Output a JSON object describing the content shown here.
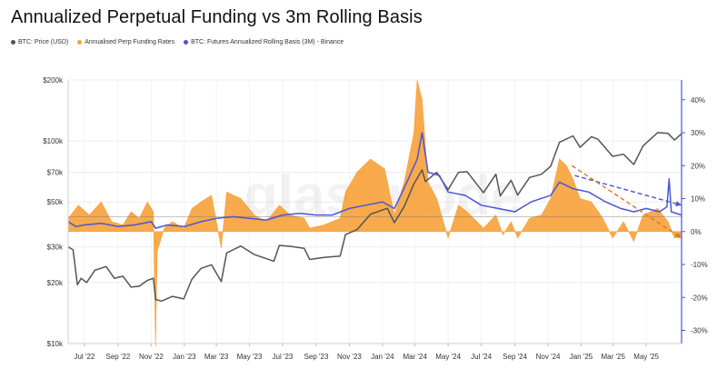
{
  "title": "Annualized Perpetual Funding vs 3m Rolling Basis",
  "legend": [
    {
      "label": "BTC: Price (USD)",
      "color": "#555555"
    },
    {
      "label": "Annualised Perp Funding Rates",
      "color": "#f7a13a"
    },
    {
      "label": "BTC: Futures Annualized Rolling Basis (3M) - Binance",
      "color": "#4a55d6"
    }
  ],
  "watermark": "glassnode",
  "colors": {
    "price": "#555555",
    "funding": "#f7a13a",
    "basis": "#4a55d6",
    "right_axis": "#4a55d6"
  },
  "chart_data": {
    "type": "line",
    "title": "Annualized Perpetual Funding vs 3m Rolling Basis",
    "x_start": "2022-06-01",
    "x_end": "2025-07-05",
    "x_ticks": [
      {
        "label": "Jul '22",
        "date": "2022-07-01"
      },
      {
        "label": "Sep '22",
        "date": "2022-09-01"
      },
      {
        "label": "Nov '22",
        "date": "2022-11-01"
      },
      {
        "label": "Jan '23",
        "date": "2023-01-01"
      },
      {
        "label": "Mar '23",
        "date": "2023-03-01"
      },
      {
        "label": "May '23",
        "date": "2023-05-01"
      },
      {
        "label": "Jul '23",
        "date": "2023-07-01"
      },
      {
        "label": "Sep '23",
        "date": "2023-09-01"
      },
      {
        "label": "Nov '23",
        "date": "2023-11-01"
      },
      {
        "label": "Jan '24",
        "date": "2024-01-01"
      },
      {
        "label": "Mar '24",
        "date": "2024-03-01"
      },
      {
        "label": "May '24",
        "date": "2024-05-01"
      },
      {
        "label": "Jul '24",
        "date": "2024-07-01"
      },
      {
        "label": "Sep '24",
        "date": "2024-09-01"
      },
      {
        "label": "Nov '24",
        "date": "2024-11-01"
      },
      {
        "label": "Jan '25",
        "date": "2025-01-01"
      },
      {
        "label": "Mar '25",
        "date": "2025-03-01"
      },
      {
        "label": "May '25",
        "date": "2025-05-01"
      }
    ],
    "left_axis": {
      "scale": "log",
      "range": [
        10000,
        200000
      ],
      "ticks": [
        {
          "label": "$200k",
          "value": 200000
        },
        {
          "label": "$100k",
          "value": 100000
        },
        {
          "label": "$70k",
          "value": 70000
        },
        {
          "label": "$50k",
          "value": 50000
        },
        {
          "label": "$30k",
          "value": 30000
        },
        {
          "label": "$20k",
          "value": 20000
        },
        {
          "label": "$10k",
          "value": 10000
        }
      ]
    },
    "right_axis": {
      "scale": "linear",
      "range": [
        -34,
        46
      ],
      "ticks": [
        {
          "label": "40%",
          "value": 40
        },
        {
          "label": "30%",
          "value": 30
        },
        {
          "label": "20%",
          "value": 20
        },
        {
          "label": "10%",
          "value": 10
        },
        {
          "label": "0%",
          "value": 0
        },
        {
          "label": "-10%",
          "value": -10
        },
        {
          "label": "-20%",
          "value": -20
        },
        {
          "label": "-30%",
          "value": -30
        }
      ]
    },
    "series": [
      {
        "name": "BTC: Price (USD)",
        "axis": "left",
        "points": [
          [
            "2022-06-01",
            30000
          ],
          [
            "2022-06-10",
            29000
          ],
          [
            "2022-06-18",
            19500
          ],
          [
            "2022-06-25",
            21000
          ],
          [
            "2022-07-05",
            20000
          ],
          [
            "2022-07-20",
            23000
          ],
          [
            "2022-08-10",
            24000
          ],
          [
            "2022-08-25",
            21000
          ],
          [
            "2022-09-10",
            21500
          ],
          [
            "2022-09-25",
            19000
          ],
          [
            "2022-10-10",
            19200
          ],
          [
            "2022-10-25",
            20500
          ],
          [
            "2022-11-05",
            21000
          ],
          [
            "2022-11-09",
            16500
          ],
          [
            "2022-11-20",
            16200
          ],
          [
            "2022-12-10",
            17100
          ],
          [
            "2022-12-31",
            16600
          ],
          [
            "2023-01-15",
            20800
          ],
          [
            "2023-02-01",
            23500
          ],
          [
            "2023-02-20",
            24500
          ],
          [
            "2023-03-10",
            20200
          ],
          [
            "2023-03-20",
            28000
          ],
          [
            "2023-04-15",
            30300
          ],
          [
            "2023-05-10",
            27500
          ],
          [
            "2023-06-15",
            25500
          ],
          [
            "2023-06-25",
            30500
          ],
          [
            "2023-07-15",
            30200
          ],
          [
            "2023-08-10",
            29500
          ],
          [
            "2023-08-20",
            26000
          ],
          [
            "2023-09-15",
            26600
          ],
          [
            "2023-10-15",
            27000
          ],
          [
            "2023-10-25",
            34500
          ],
          [
            "2023-11-15",
            36500
          ],
          [
            "2023-12-10",
            43500
          ],
          [
            "2024-01-10",
            46500
          ],
          [
            "2024-01-23",
            39500
          ],
          [
            "2024-02-10",
            47500
          ],
          [
            "2024-02-28",
            61500
          ],
          [
            "2024-03-14",
            72000
          ],
          [
            "2024-03-20",
            63000
          ],
          [
            "2024-04-10",
            70000
          ],
          [
            "2024-05-01",
            57500
          ],
          [
            "2024-05-20",
            70000
          ],
          [
            "2024-06-05",
            70500
          ],
          [
            "2024-07-05",
            55500
          ],
          [
            "2024-07-28",
            68500
          ],
          [
            "2024-08-05",
            53500
          ],
          [
            "2024-08-25",
            64000
          ],
          [
            "2024-09-06",
            54000
          ],
          [
            "2024-09-28",
            66000
          ],
          [
            "2024-10-20",
            68500
          ],
          [
            "2024-11-06",
            75000
          ],
          [
            "2024-11-22",
            98500
          ],
          [
            "2024-12-17",
            106000
          ],
          [
            "2024-12-30",
            93000
          ],
          [
            "2025-01-20",
            105000
          ],
          [
            "2025-02-01",
            102000
          ],
          [
            "2025-02-28",
            84000
          ],
          [
            "2025-03-20",
            86000
          ],
          [
            "2025-04-08",
            76500
          ],
          [
            "2025-04-25",
            94500
          ],
          [
            "2025-05-22",
            110000
          ],
          [
            "2025-06-10",
            109000
          ],
          [
            "2025-06-22",
            101000
          ],
          [
            "2025-07-05",
            108500
          ]
        ]
      },
      {
        "name": "Annualised Perp Funding Rates",
        "axis": "right",
        "points": [
          [
            "2022-06-01",
            4
          ],
          [
            "2022-06-20",
            8
          ],
          [
            "2022-07-10",
            5
          ],
          [
            "2022-08-01",
            9
          ],
          [
            "2022-08-20",
            3
          ],
          [
            "2022-09-10",
            2
          ],
          [
            "2022-09-25",
            6
          ],
          [
            "2022-10-10",
            4
          ],
          [
            "2022-10-25",
            9
          ],
          [
            "2022-11-05",
            6
          ],
          [
            "2022-11-09",
            -35
          ],
          [
            "2022-11-12",
            -6
          ],
          [
            "2022-11-25",
            1
          ],
          [
            "2022-12-10",
            3
          ],
          [
            "2022-12-31",
            1
          ],
          [
            "2023-01-15",
            7
          ],
          [
            "2023-02-01",
            9
          ],
          [
            "2023-02-20",
            11
          ],
          [
            "2023-03-10",
            -5
          ],
          [
            "2023-03-20",
            12
          ],
          [
            "2023-04-15",
            10
          ],
          [
            "2023-05-10",
            5
          ],
          [
            "2023-06-01",
            3
          ],
          [
            "2023-06-25",
            8
          ],
          [
            "2023-07-15",
            5
          ],
          [
            "2023-08-10",
            4
          ],
          [
            "2023-08-20",
            1
          ],
          [
            "2023-09-15",
            2
          ],
          [
            "2023-10-15",
            4
          ],
          [
            "2023-10-25",
            12
          ],
          [
            "2023-11-15",
            18
          ],
          [
            "2023-12-10",
            22
          ],
          [
            "2024-01-05",
            19
          ],
          [
            "2024-01-23",
            5
          ],
          [
            "2024-02-10",
            15
          ],
          [
            "2024-02-28",
            30
          ],
          [
            "2024-03-05",
            46
          ],
          [
            "2024-03-14",
            40
          ],
          [
            "2024-03-25",
            15
          ],
          [
            "2024-04-10",
            10
          ],
          [
            "2024-05-01",
            -2
          ],
          [
            "2024-05-20",
            8
          ],
          [
            "2024-06-05",
            6
          ],
          [
            "2024-07-05",
            1
          ],
          [
            "2024-07-28",
            5
          ],
          [
            "2024-08-10",
            -1
          ],
          [
            "2024-08-25",
            3
          ],
          [
            "2024-09-06",
            -2
          ],
          [
            "2024-09-28",
            4
          ],
          [
            "2024-10-20",
            5
          ],
          [
            "2024-11-06",
            10
          ],
          [
            "2024-11-22",
            22
          ],
          [
            "2024-12-05",
            20
          ],
          [
            "2024-12-17",
            16
          ],
          [
            "2024-12-30",
            10
          ],
          [
            "2025-01-20",
            9
          ],
          [
            "2025-02-10",
            4
          ],
          [
            "2025-02-28",
            -2
          ],
          [
            "2025-03-20",
            3
          ],
          [
            "2025-04-08",
            -3
          ],
          [
            "2025-04-25",
            5
          ],
          [
            "2025-05-22",
            7
          ],
          [
            "2025-06-10",
            3
          ],
          [
            "2025-06-22",
            -2
          ],
          [
            "2025-07-05",
            -1
          ]
        ]
      },
      {
        "name": "BTC: Futures Annualized Rolling Basis (3M) - Binance",
        "axis": "right",
        "points": [
          [
            "2022-06-01",
            3
          ],
          [
            "2022-06-15",
            1.5
          ],
          [
            "2022-07-01",
            2
          ],
          [
            "2022-08-01",
            2.5
          ],
          [
            "2022-09-01",
            1.5
          ],
          [
            "2022-10-01",
            2
          ],
          [
            "2022-11-01",
            3
          ],
          [
            "2022-11-09",
            1
          ],
          [
            "2022-12-01",
            2
          ],
          [
            "2023-01-01",
            1.5
          ],
          [
            "2023-02-01",
            3
          ],
          [
            "2023-03-01",
            4
          ],
          [
            "2023-04-01",
            4.5
          ],
          [
            "2023-05-01",
            4
          ],
          [
            "2023-06-01",
            3.5
          ],
          [
            "2023-07-01",
            5
          ],
          [
            "2023-08-01",
            5.5
          ],
          [
            "2023-09-01",
            5
          ],
          [
            "2023-10-01",
            5
          ],
          [
            "2023-11-01",
            7
          ],
          [
            "2023-12-01",
            8
          ],
          [
            "2024-01-01",
            9
          ],
          [
            "2024-01-23",
            7
          ],
          [
            "2024-02-15",
            15
          ],
          [
            "2024-03-05",
            22
          ],
          [
            "2024-03-14",
            30
          ],
          [
            "2024-03-25",
            18
          ],
          [
            "2024-04-15",
            17
          ],
          [
            "2024-05-01",
            12
          ],
          [
            "2024-06-01",
            11
          ],
          [
            "2024-07-01",
            8
          ],
          [
            "2024-08-01",
            7
          ],
          [
            "2024-09-01",
            6
          ],
          [
            "2024-10-01",
            9
          ],
          [
            "2024-11-06",
            11
          ],
          [
            "2024-11-22",
            15
          ],
          [
            "2024-12-17",
            13
          ],
          [
            "2025-01-15",
            12
          ],
          [
            "2025-02-15",
            9
          ],
          [
            "2025-03-15",
            7
          ],
          [
            "2025-04-08",
            6
          ],
          [
            "2025-05-01",
            7
          ],
          [
            "2025-05-25",
            6
          ],
          [
            "2025-06-08",
            7.5
          ],
          [
            "2025-06-12",
            16
          ],
          [
            "2025-06-16",
            6
          ],
          [
            "2025-07-05",
            5
          ]
        ]
      }
    ],
    "trend_lines": [
      {
        "name": "basis trend",
        "color": "#4a55d6",
        "from": [
          "2024-12-20",
          17
        ],
        "to": [
          "2025-07-05",
          8
        ]
      },
      {
        "name": "funding trend",
        "color": "#d97b1c",
        "from": [
          "2024-12-15",
          20
        ],
        "to": [
          "2025-07-05",
          -2
        ]
      }
    ],
    "horizontal_reference": {
      "axis": "right",
      "value": 4.5
    },
    "grid": true,
    "legend_position": "top-left"
  }
}
